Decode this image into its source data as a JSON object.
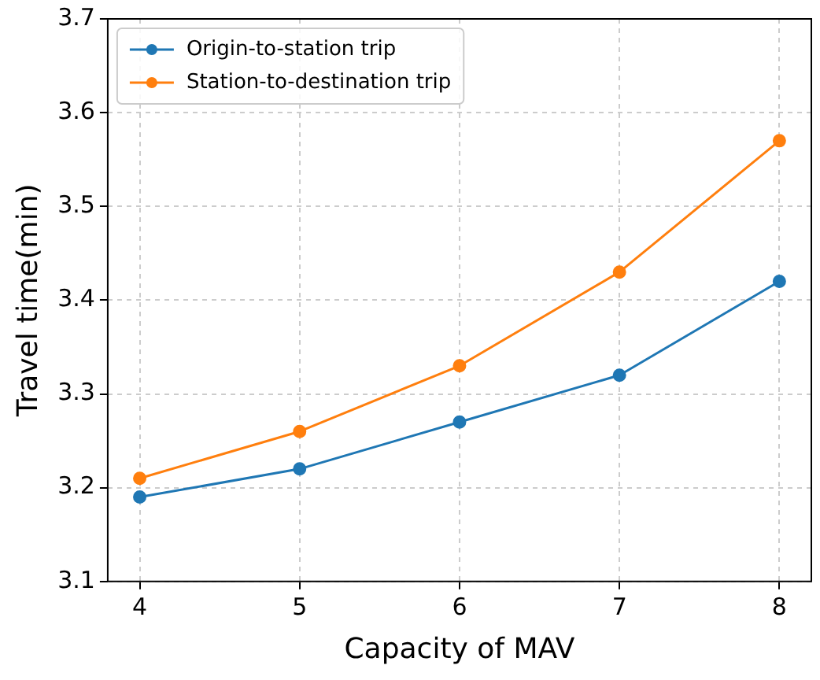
{
  "chart_data": {
    "type": "line",
    "xlabel": "Capacity of MAV",
    "ylabel": "Travel time(min)",
    "x": [
      4,
      5,
      6,
      7,
      8
    ],
    "series": [
      {
        "name": "Origin-to-station trip",
        "color": "#1f77b4",
        "values": [
          3.19,
          3.22,
          3.27,
          3.32,
          3.42
        ]
      },
      {
        "name": "Station-to-destination trip",
        "color": "#ff7f0e",
        "values": [
          3.21,
          3.26,
          3.33,
          3.43,
          3.57
        ]
      }
    ],
    "xlim": [
      3.8,
      8.2
    ],
    "xticks": [
      4,
      5,
      6,
      7,
      8
    ],
    "ylim": [
      3.1,
      3.7
    ],
    "yticks": [
      3.1,
      3.2,
      3.3,
      3.4,
      3.5,
      3.6,
      3.7
    ],
    "grid": true,
    "legend": "top left",
    "marker": "circle",
    "line_style": "solid"
  }
}
